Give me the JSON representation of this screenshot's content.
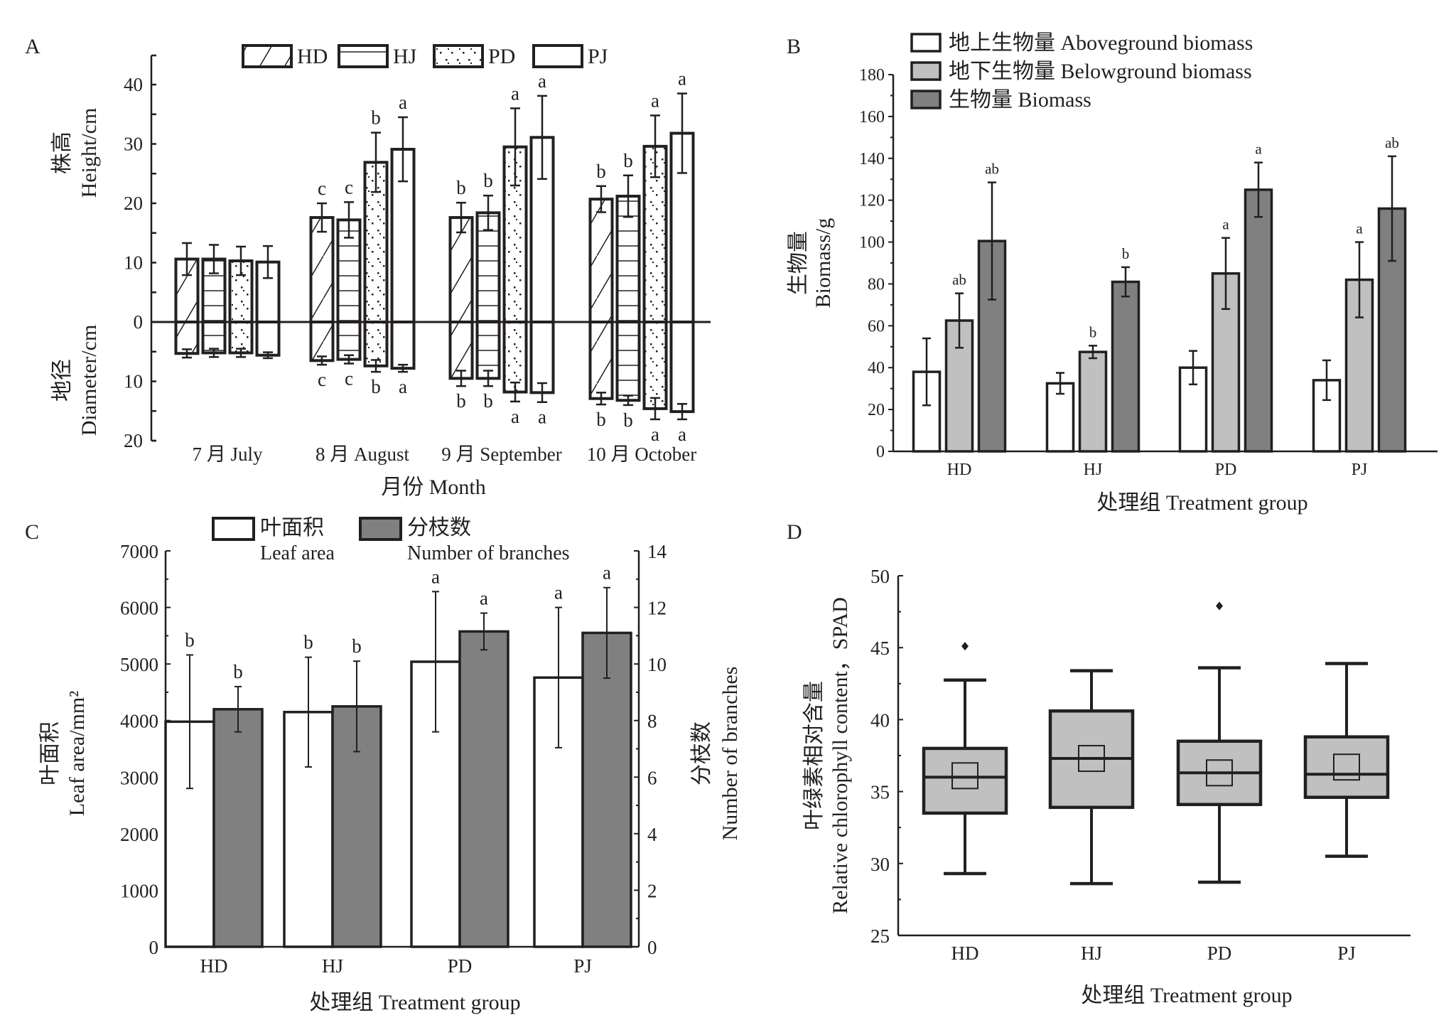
{
  "figure": {
    "panels": [
      "A",
      "B",
      "C",
      "D"
    ]
  },
  "chart_data": [
    {
      "id": "A",
      "type": "bar",
      "panel_label": "A",
      "categories": [
        "7 月 July",
        "8 月 August",
        "9 月 September",
        "10 月 October"
      ],
      "xlabel": "月份 Month",
      "ylabel_top": [
        "株高",
        "Height/cm"
      ],
      "ylabel_bottom": [
        "地径",
        "Diameter/cm"
      ],
      "yticks_top": [
        0,
        10,
        20,
        30,
        40
      ],
      "yticks_bottom": [
        10,
        20
      ],
      "ylim_top": [
        0,
        40
      ],
      "ylim_bottom": [
        0,
        20
      ],
      "legend": [
        "HD",
        "HJ",
        "PD",
        "PJ"
      ],
      "legend_position": "top",
      "series": [
        {
          "name": "HD",
          "pattern": "diagonal",
          "height": [
            10.6,
            17.6,
            17.6,
            20.7
          ],
          "height_err": [
            2.7,
            2.4,
            2.5,
            2.2
          ],
          "height_sig": [
            "",
            "c",
            "b",
            "b"
          ],
          "diameter": [
            5.3,
            6.5,
            9.5,
            12.9
          ],
          "diameter_err": [
            0.7,
            0.7,
            1.3,
            1.0
          ],
          "diameter_sig": [
            "",
            "c",
            "b",
            "b"
          ]
        },
        {
          "name": "HJ",
          "pattern": "horizontal",
          "height": [
            10.6,
            17.2,
            18.4,
            21.2
          ],
          "height_err": [
            2.4,
            3.0,
            2.9,
            3.5
          ],
          "height_sig": [
            "",
            "c",
            "b",
            "b"
          ],
          "diameter": [
            5.2,
            6.3,
            9.5,
            13.2
          ],
          "diameter_err": [
            0.7,
            0.7,
            1.3,
            0.8
          ],
          "diameter_sig": [
            "",
            "c",
            "b",
            "b"
          ]
        },
        {
          "name": "PD",
          "pattern": "dotted",
          "height": [
            10.3,
            26.9,
            29.5,
            29.6
          ],
          "height_err": [
            2.4,
            5.0,
            6.5,
            5.2
          ],
          "height_sig": [
            "",
            "b",
            "a",
            "a"
          ],
          "diameter": [
            5.2,
            7.4,
            11.8,
            14.6
          ],
          "diameter_err": [
            0.7,
            1.0,
            1.6,
            1.8
          ],
          "diameter_sig": [
            "",
            "b",
            "a",
            "a"
          ]
        },
        {
          "name": "PJ",
          "pattern": "none",
          "height": [
            10.1,
            29.1,
            31.1,
            31.8
          ],
          "height_err": [
            2.7,
            5.4,
            7.0,
            6.7
          ],
          "height_sig": [
            "",
            "a",
            "a",
            "a"
          ],
          "diameter": [
            5.6,
            7.8,
            11.9,
            15.1
          ],
          "diameter_err": [
            0.5,
            0.6,
            1.6,
            1.3
          ],
          "diameter_sig": [
            "",
            "a",
            "a",
            "a"
          ]
        }
      ]
    },
    {
      "id": "B",
      "type": "bar",
      "panel_label": "B",
      "categories": [
        "HD",
        "HJ",
        "PD",
        "PJ"
      ],
      "xlabel": "处理组 Treatment group",
      "ylabel": [
        "生物量",
        "Biomass/g"
      ],
      "ylim": [
        0,
        180
      ],
      "yticks": [
        0,
        20,
        40,
        60,
        80,
        100,
        120,
        140,
        160,
        180
      ],
      "legend_position": "top-left",
      "series": [
        {
          "name": "地上生物量 Aboveground biomass",
          "color": "#ffffff",
          "values": [
            38,
            32.5,
            40,
            34
          ],
          "err": [
            16,
            5,
            8,
            9.5
          ],
          "sig": [
            "",
            "",
            "",
            ""
          ]
        },
        {
          "name": "地下生物量 Belowground biomass",
          "color": "#c0c0c0",
          "values": [
            62.5,
            47.5,
            85,
            82
          ],
          "err": [
            13,
            3,
            17,
            18
          ],
          "sig": [
            "ab",
            "b",
            "a",
            "a"
          ]
        },
        {
          "name": "生物量 Biomass",
          "color": "#808080",
          "values": [
            100.5,
            81,
            125,
            116
          ],
          "err": [
            28,
            7,
            13,
            25
          ],
          "sig": [
            "ab",
            "b",
            "a",
            "ab"
          ]
        }
      ]
    },
    {
      "id": "C",
      "type": "bar",
      "panel_label": "C",
      "categories": [
        "HD",
        "HJ",
        "PD",
        "PJ"
      ],
      "xlabel": "处理组 Treatment group",
      "ylabel_left": [
        "叶面积",
        "Leaf area/mm²"
      ],
      "ylabel_right": [
        "分枝数",
        "Number of branches"
      ],
      "ylim_left": [
        0,
        7000
      ],
      "ylim_right": [
        0,
        14
      ],
      "yticks_left": [
        0,
        1000,
        2000,
        3000,
        4000,
        5000,
        6000,
        7000
      ],
      "yticks_right": [
        0,
        2,
        4,
        6,
        8,
        10,
        12,
        14
      ],
      "legend_position": "top",
      "series": [
        {
          "name": "叶面积",
          "name_en": "Leaf area",
          "axis": "left",
          "color": "#ffffff",
          "values": [
            3980,
            4150,
            5040,
            4760
          ],
          "err": [
            1180,
            970,
            1240,
            1240
          ],
          "sig": [
            "b",
            "b",
            "a",
            "a"
          ]
        },
        {
          "name": "分枝数",
          "name_en": "Number of branches",
          "axis": "right",
          "color": "#808080",
          "values": [
            8.4,
            8.5,
            11.15,
            11.1
          ],
          "err": [
            0.8,
            1.6,
            0.65,
            1.6
          ],
          "sig": [
            "b",
            "b",
            "a",
            "a"
          ]
        }
      ]
    },
    {
      "id": "D",
      "type": "box",
      "panel_label": "D",
      "categories": [
        "HD",
        "HJ",
        "PD",
        "PJ"
      ],
      "xlabel": "处理组 Treatment group",
      "ylabel": [
        "叶绿素相对含量",
        "Relative chlorophyll content，SPAD"
      ],
      "ylim": [
        25,
        50
      ],
      "yticks": [
        25,
        30,
        35,
        40,
        45,
        50
      ],
      "boxes": [
        {
          "name": "HD",
          "min": 29.3,
          "q1": 33.5,
          "median": 36.0,
          "q3": 38.0,
          "max": 42.75,
          "mean": 36.1,
          "outliers": [
            45.1
          ]
        },
        {
          "name": "HJ",
          "min": 28.6,
          "q1": 33.9,
          "median": 37.3,
          "q3": 40.6,
          "max": 43.4,
          "mean": 37.3,
          "outliers": []
        },
        {
          "name": "PD",
          "min": 28.7,
          "q1": 34.1,
          "median": 36.3,
          "q3": 38.5,
          "max": 43.6,
          "mean": 36.3,
          "outliers": [
            47.9
          ]
        },
        {
          "name": "PJ",
          "min": 30.5,
          "q1": 34.6,
          "median": 36.2,
          "q3": 38.8,
          "max": 43.9,
          "mean": 36.7,
          "outliers": []
        }
      ],
      "box_color": "#c0c0c0"
    }
  ]
}
